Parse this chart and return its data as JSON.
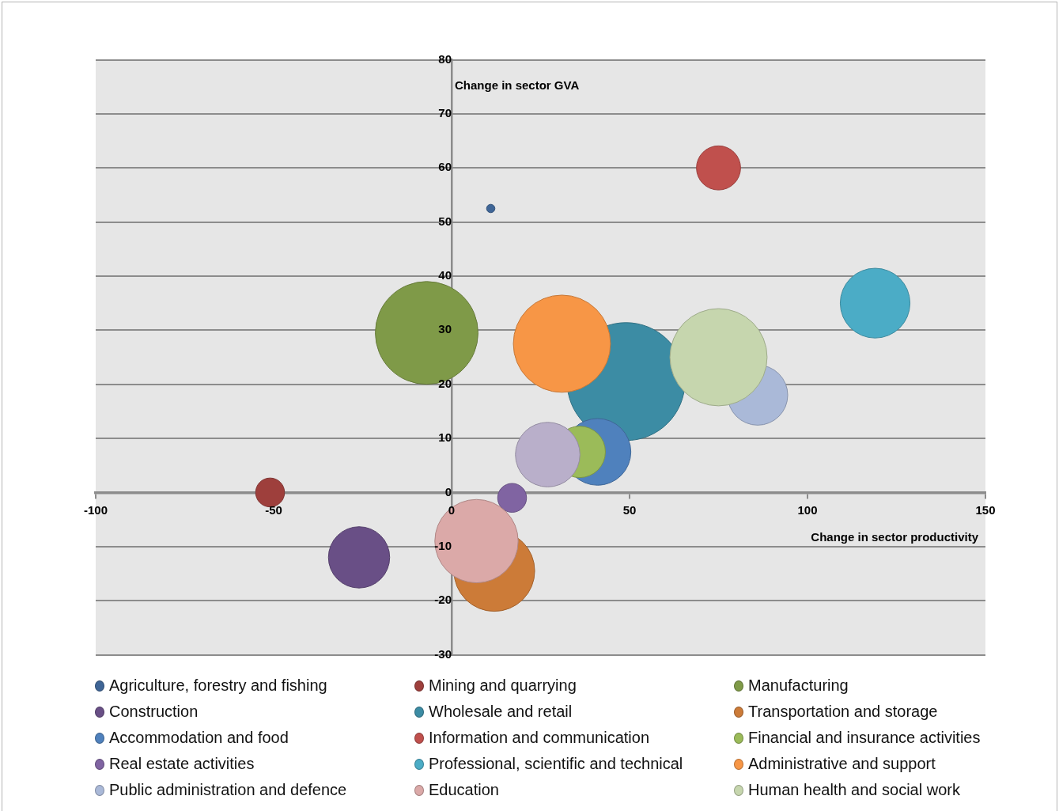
{
  "chart_data": {
    "type": "bubble",
    "xlabel": "Change in sector productivity",
    "ylabel": "Change in sector GVA",
    "xlim": [
      -100,
      150
    ],
    "xticks": [
      -100,
      -50,
      0,
      50,
      100,
      150
    ],
    "ylim": [
      -30,
      80
    ],
    "yticks": [
      -30,
      -20,
      -10,
      0,
      10,
      20,
      30,
      40,
      50,
      60,
      70,
      80
    ],
    "grid": "y",
    "legend": "bottom",
    "series": [
      {
        "name": "Agriculture, forestry and fishing",
        "color": "#3f6596",
        "x": [
          11
        ],
        "values": [
          52.5
        ],
        "sizes": [
          0.005
        ]
      },
      {
        "name": "Mining and quarrying",
        "color": "#9e3f3c",
        "x": [
          -51
        ],
        "values": [
          0
        ],
        "sizes": [
          0.06
        ]
      },
      {
        "name": "Manufacturing",
        "color": "#7f9a48",
        "x": [
          -7
        ],
        "values": [
          29.5
        ],
        "sizes": [
          0.76
        ]
      },
      {
        "name": "Construction",
        "color": "#694f86",
        "x": [
          -26
        ],
        "values": [
          -12
        ],
        "sizes": [
          0.27
        ]
      },
      {
        "name": "Wholesale and retail",
        "color": "#3c8ca4",
        "x": [
          49
        ],
        "values": [
          20.5
        ],
        "sizes": [
          1
        ]
      },
      {
        "name": "Transportation and storage",
        "color": "#cc7b38",
        "x": [
          12
        ],
        "values": [
          -14.5
        ],
        "sizes": [
          0.47
        ]
      },
      {
        "name": "Accommodation and food",
        "color": "#4f81bd",
        "x": [
          41
        ],
        "values": [
          7.5
        ],
        "sizes": [
          0.32
        ]
      },
      {
        "name": "Information and communication",
        "color": "#c0504d",
        "x": [
          75
        ],
        "values": [
          60
        ],
        "sizes": [
          0.14
        ]
      },
      {
        "name": "Financial and insurance activities",
        "color": "#9bbb59",
        "x": [
          36
        ],
        "values": [
          7.5
        ],
        "sizes": [
          0.19
        ]
      },
      {
        "name": "Real estate activities",
        "color": "#8064a2",
        "x": [
          17
        ],
        "values": [
          -1
        ],
        "sizes": [
          0.06
        ]
      },
      {
        "name": "Professional, scientific and technical",
        "color": "#4bacc6",
        "x": [
          119
        ],
        "values": [
          35
        ],
        "sizes": [
          0.35
        ]
      },
      {
        "name": "Administrative and support",
        "color": "#f79646",
        "x": [
          31
        ],
        "values": [
          27.5
        ],
        "sizes": [
          0.68
        ]
      },
      {
        "name": "Public administration and defence",
        "color": "#aab9d8",
        "x": [
          86
        ],
        "values": [
          18
        ],
        "sizes": [
          0.26
        ]
      },
      {
        "name": "Education",
        "color": "#dba9a8",
        "x": [
          7
        ],
        "values": [
          -9
        ],
        "sizes": [
          0.5
        ]
      },
      {
        "name": "Human health and social work",
        "color": "#c6d6ae",
        "x": [
          75
        ],
        "values": [
          25
        ],
        "sizes": [
          0.68
        ]
      },
      {
        "color": "#b9afca",
        "x": [
          27
        ],
        "values": [
          7
        ],
        "sizes": [
          0.3
        ]
      }
    ]
  }
}
